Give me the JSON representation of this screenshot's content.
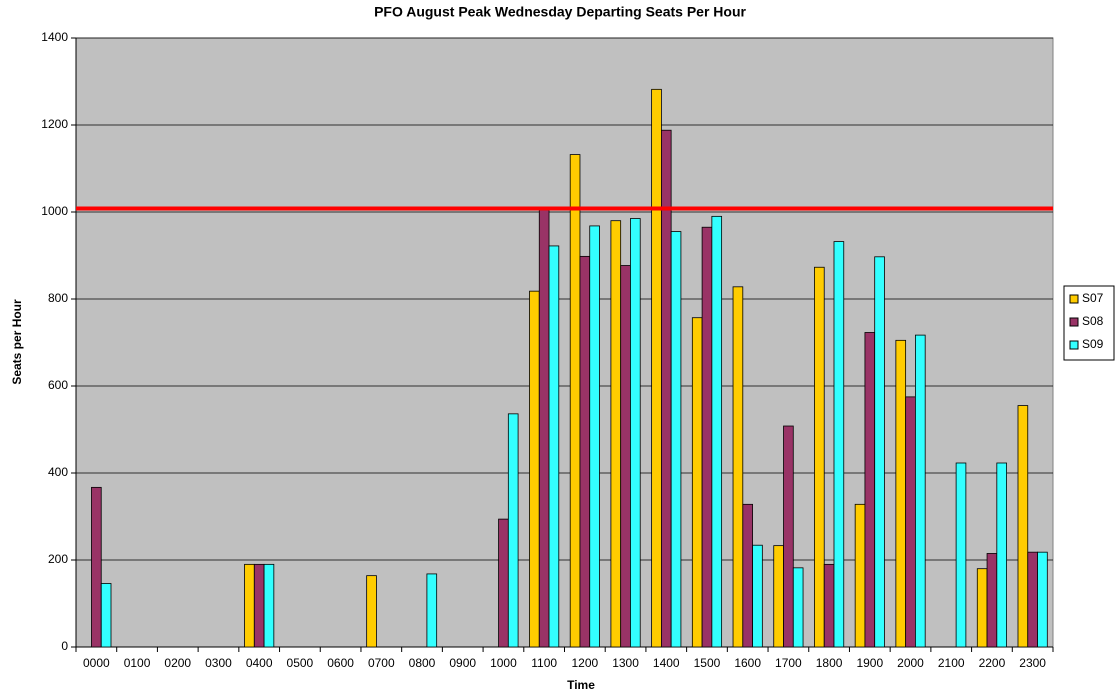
{
  "chart_data": {
    "type": "bar",
    "title": "PFO August Peak Wednesday Departing Seats Per Hour",
    "x_label": "Time",
    "y_label": "Seats per Hour",
    "categories": [
      "0000",
      "0100",
      "0200",
      "0300",
      "0400",
      "0500",
      "0600",
      "0700",
      "0800",
      "0900",
      "1000",
      "1100",
      "1200",
      "1300",
      "1400",
      "1500",
      "1600",
      "1700",
      "1800",
      "1900",
      "2000",
      "2100",
      "2200",
      "2300"
    ],
    "series": [
      {
        "name": "S07",
        "color": "#ffcc00",
        "values": [
          0,
          0,
          0,
          0,
          190,
          0,
          0,
          164,
          0,
          0,
          0,
          818,
          1132,
          980,
          1282,
          757,
          828,
          233,
          873,
          328,
          705,
          0,
          180,
          555
        ]
      },
      {
        "name": "S08",
        "color": "#993366",
        "values": [
          367,
          0,
          0,
          0,
          190,
          0,
          0,
          0,
          0,
          0,
          294,
          1005,
          898,
          877,
          1188,
          965,
          328,
          508,
          190,
          723,
          575,
          0,
          215,
          218
        ]
      },
      {
        "name": "S09",
        "color": "#33ffff",
        "values": [
          146,
          0,
          0,
          0,
          190,
          0,
          0,
          0,
          168,
          0,
          536,
          922,
          968,
          985,
          955,
          990,
          234,
          182,
          932,
          897,
          717,
          423,
          423,
          218
        ]
      }
    ],
    "reference_line": {
      "value": 1008,
      "color": "#ff0000"
    },
    "ylim": [
      0,
      1400
    ],
    "yticks": [
      0,
      200,
      400,
      600,
      800,
      1000,
      1200,
      1400
    ],
    "grid": true,
    "plot_background": "#c0c0c0",
    "legend": "right"
  }
}
